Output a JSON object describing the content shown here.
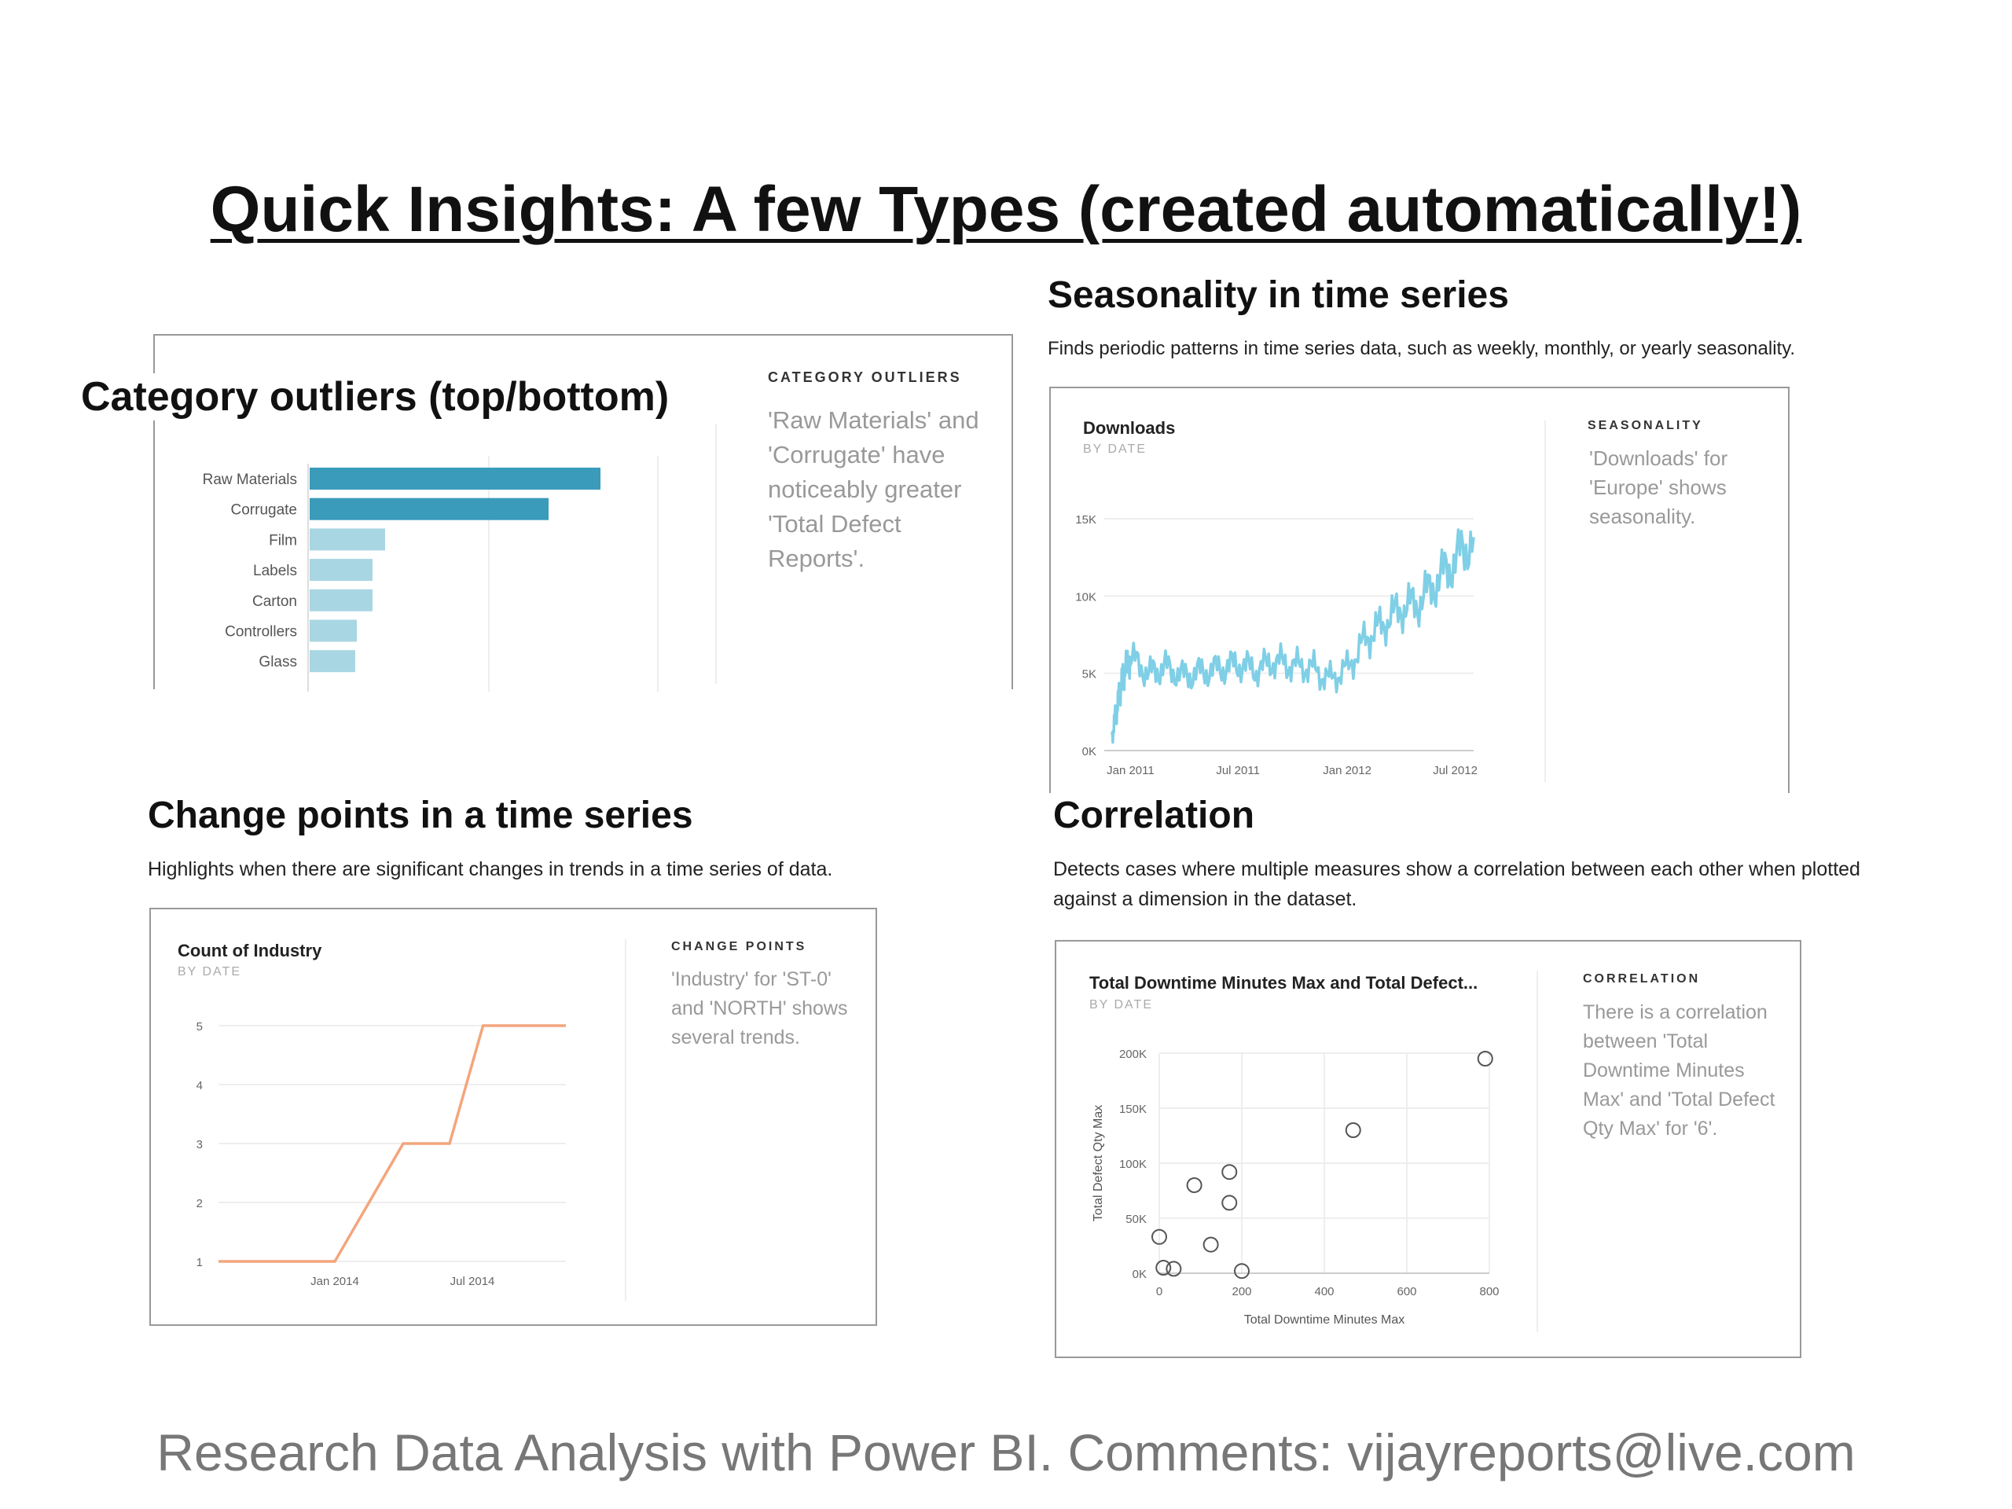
{
  "slide": {
    "title": "Quick Insights: A few Types (created automatically!)",
    "footer": "Research Data Analysis with Power BI. Comments: vijayreports@live.com"
  },
  "colors": {
    "bar_highlight": "#3a9bbb",
    "bar_normal": "#a9d6e3",
    "seasonality_line": "#7fcfe6",
    "change_line": "#f4a57c",
    "scatter_marker": "#555555"
  },
  "sections": {
    "category": {
      "title": "Category outliers (top/bottom)",
      "insight_label": "CATEGORY OUTLIERS",
      "insight_text": "'Raw Materials' and 'Corrugate' have noticeably greater 'Total Defect Reports'."
    },
    "seasonality": {
      "title": "Seasonality in time series",
      "description": "Finds periodic patterns in time series data, such as weekly, monthly, or yearly seasonality.",
      "chart_title": "Downloads",
      "chart_subtitle": "BY DATE",
      "insight_label": "SEASONALITY",
      "insight_text": "'Downloads' for 'Europe' shows seasonality."
    },
    "change": {
      "title": "Change points in a time series",
      "description": "Highlights when there are significant changes in trends in a time series of data.",
      "chart_title": "Count of Industry",
      "chart_subtitle": "BY DATE",
      "insight_label": "CHANGE POINTS",
      "insight_text": "'Industry' for 'ST-0' and 'NORTH' shows several trends."
    },
    "correlation": {
      "title": "Correlation",
      "description": "Detects cases where multiple measures show a correlation between each other when plotted against a dimension in the dataset.",
      "chart_title": "Total Downtime Minutes Max and Total Defect...",
      "chart_subtitle": "BY DATE",
      "insight_label": "CORRELATION",
      "insight_text": "There is a correlation between 'Total Downtime Minutes Max' and 'Total Defect Qty Max' for '6'."
    }
  },
  "chart_data": [
    {
      "type": "bar",
      "orientation": "horizontal",
      "categories": [
        "Raw Materials",
        "Corrugate",
        "Film",
        "Labels",
        "Carton",
        "Controllers",
        "Glass"
      ],
      "values": [
        185,
        152,
        48,
        40,
        40,
        30,
        29
      ],
      "highlighted": [
        "Raw Materials",
        "Corrugate"
      ],
      "xlim": [
        0,
        200
      ]
    },
    {
      "type": "line",
      "title": "Downloads",
      "x_ticks": [
        "Jan 2011",
        "Jul 2011",
        "Jan 2012",
        "Jul 2012"
      ],
      "y_ticks": [
        "0K",
        "5K",
        "10K",
        "15K"
      ],
      "ylim": [
        0,
        15000
      ],
      "x": [
        "2010-12-01",
        "2010-12-08",
        "2010-12-15",
        "2010-12-22",
        "2011-01-01",
        "2011-02-01",
        "2011-03-01",
        "2011-04-01",
        "2011-05-01",
        "2011-06-01",
        "2011-07-01",
        "2011-08-01",
        "2011-09-01",
        "2011-10-01",
        "2011-11-01",
        "2011-12-01",
        "2012-01-01",
        "2012-02-01",
        "2012-03-01",
        "2012-04-01",
        "2012-05-01",
        "2012-06-01",
        "2012-07-01",
        "2012-08-01"
      ],
      "values": [
        1000,
        2500,
        4000,
        5200,
        6000,
        5000,
        5400,
        4800,
        5100,
        5300,
        5600,
        5200,
        5800,
        5500,
        5400,
        4600,
        5300,
        7200,
        8200,
        9200,
        9600,
        11000,
        12300,
        13800
      ]
    },
    {
      "type": "line",
      "title": "Count of Industry",
      "x_ticks": [
        "Jan 2014",
        "Jul 2014"
      ],
      "y_ticks": [
        "1",
        "2",
        "3",
        "4",
        "5"
      ],
      "ylim": [
        1,
        5
      ],
      "x": [
        "2013-08-01",
        "2014-01-01",
        "2014-04-01",
        "2014-06-01",
        "2014-07-15",
        "2014-11-01"
      ],
      "values": [
        1,
        1,
        3,
        3,
        5,
        5
      ]
    },
    {
      "type": "scatter",
      "title": "Total Downtime Minutes Max and Total Defect...",
      "xlabel": "Total Downtime Minutes Max",
      "ylabel": "Total Defect Qty Max",
      "x_ticks": [
        "0",
        "200",
        "400",
        "600",
        "800"
      ],
      "y_ticks": [
        "0K",
        "50K",
        "100K",
        "150K",
        "200K"
      ],
      "xlim": [
        0,
        800
      ],
      "ylim": [
        0,
        200000
      ],
      "points": [
        [
          0,
          33000
        ],
        [
          10,
          5000
        ],
        [
          35,
          4000
        ],
        [
          85,
          80000
        ],
        [
          125,
          26000
        ],
        [
          170,
          92000
        ],
        [
          170,
          64000
        ],
        [
          200,
          2000
        ],
        [
          470,
          130000
        ],
        [
          790,
          195000
        ]
      ]
    }
  ]
}
